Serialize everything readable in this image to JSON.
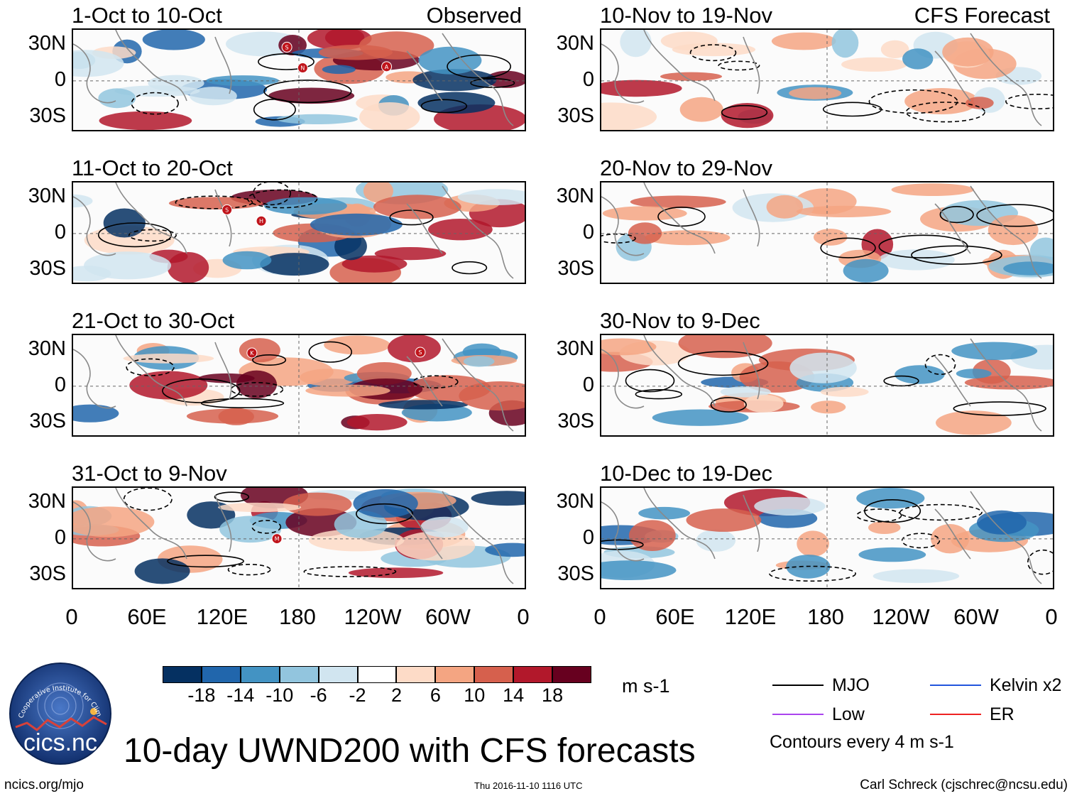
{
  "chart_data": {
    "type": "heatmap",
    "title": "10-day UWND200 with CFS forecasts",
    "variable": "UWND200",
    "units": "m s-1",
    "contour_note": "Contours every 4 m s-1",
    "x_tick_labels": [
      "0",
      "60E",
      "120E",
      "180",
      "120W",
      "60W",
      "0"
    ],
    "y_tick_labels": [
      "30N",
      "0",
      "30S"
    ],
    "colorbar": {
      "ticks": [
        "-18",
        "-14",
        "-10",
        "-6",
        "-2",
        "2",
        "6",
        "10",
        "14",
        "18"
      ],
      "colors": [
        "#053061",
        "#2166ac",
        "#4393c3",
        "#92c5de",
        "#d1e5f0",
        "#ffffff",
        "#fddbc7",
        "#f4a582",
        "#d6604d",
        "#b2182b",
        "#67001f"
      ]
    },
    "legend": [
      {
        "label": "MJO",
        "color": "#000000"
      },
      {
        "label": "Kelvin x2",
        "color": "#2255dd"
      },
      {
        "label": "Low",
        "color": "#aa44ee"
      },
      {
        "label": "ER",
        "color": "#ee2222"
      }
    ],
    "panels": [
      {
        "period": "1-Oct to 10-Oct",
        "source": "Observed",
        "column": "left",
        "storms": [
          "A",
          "S",
          "N"
        ]
      },
      {
        "period": "11-Oct to 20-Oct",
        "source": "",
        "column": "left",
        "storms": [
          "S",
          "H"
        ]
      },
      {
        "period": "21-Oct to 30-Oct",
        "source": "",
        "column": "left",
        "storms": [
          "K",
          "S"
        ]
      },
      {
        "period": "31-Oct to 9-Nov",
        "source": "",
        "column": "left",
        "storms": [
          "M"
        ]
      },
      {
        "period": "10-Nov to 19-Nov",
        "source": "CFS Forecast",
        "column": "right",
        "storms": []
      },
      {
        "period": "20-Nov to 29-Nov",
        "source": "",
        "column": "right",
        "storms": []
      },
      {
        "period": "30-Nov to 9-Dec",
        "source": "",
        "column": "right",
        "storms": []
      },
      {
        "period": "10-Dec to 19-Dec",
        "source": "",
        "column": "right",
        "storms": []
      }
    ]
  },
  "logo": {
    "text": "cics.nc",
    "arc_text": "Cooperative Institute for Climate and Satellites"
  },
  "footer": {
    "url": "ncics.org/mjo",
    "timestamp": "Thu 2016-11-10 1116 UTC",
    "author": "Carl Schreck (cjschrec@ncsu.edu)"
  }
}
